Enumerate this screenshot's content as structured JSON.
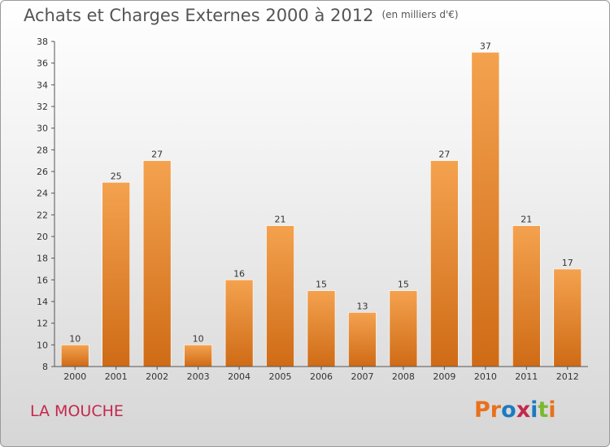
{
  "header": {
    "title": "Achats et Charges Externes 2000 à 2012",
    "unit": "(en milliers d'€)"
  },
  "footer": {
    "commune": "LA MOUCHE",
    "brand": "Proxiti",
    "brand_colors": [
      "#e8711c",
      "#e8711c",
      "#1d7ac1",
      "#c4284d",
      "#1d7ac1",
      "#7cb82f",
      "#e8711c"
    ]
  },
  "colors": {
    "bar_top": "#f4a24f",
    "bar_bottom": "#cf6b16",
    "axis": "#555555",
    "grid": "#cccccc"
  },
  "chart_data": {
    "type": "bar",
    "title": "Achats et Charges Externes 2000 à 2012",
    "xlabel": "",
    "ylabel": "",
    "categories": [
      "2000",
      "2001",
      "2002",
      "2003",
      "2004",
      "2005",
      "2006",
      "2007",
      "2008",
      "2009",
      "2010",
      "2011",
      "2012"
    ],
    "values": [
      10,
      25,
      27,
      10,
      16,
      21,
      15,
      13,
      15,
      27,
      37,
      21,
      17
    ],
    "ylim": [
      8,
      38
    ],
    "yticks": [
      8,
      10,
      12,
      14,
      16,
      18,
      20,
      22,
      24,
      26,
      28,
      30,
      32,
      34,
      36,
      38
    ],
    "grid": false,
    "data_labels": true
  }
}
